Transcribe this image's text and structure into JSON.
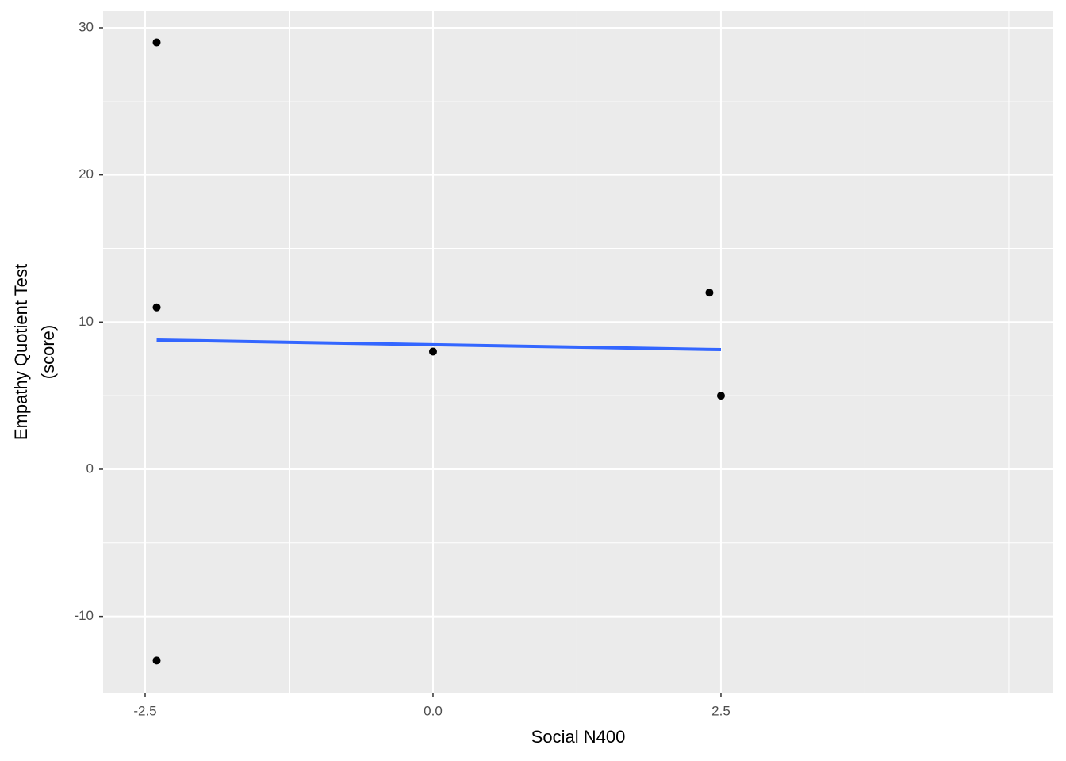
{
  "chart_data": {
    "type": "scatter",
    "x_label": "Social N400",
    "y_label": [
      "Empathy Quotient Test",
      "(score)"
    ],
    "x": [
      -2.4,
      -2.4,
      -2.4,
      0,
      2.4,
      2.5
    ],
    "values": [
      29,
      11,
      -13,
      8,
      12,
      5
    ],
    "color": "#000000",
    "fit_line": {
      "x": [
        -2.4,
        2.5
      ],
      "values": [
        8.78,
        8.13
      ],
      "color": "#3366FF"
    },
    "xlim": [
      -2.865,
      5.386
    ],
    "ylim": [
      -15.19,
      31.13
    ],
    "xticks": [
      {
        "value": -2.5,
        "label": "-2.5"
      },
      {
        "value": 0,
        "label": "0.0"
      },
      {
        "value": 2.5,
        "label": "2.5"
      }
    ],
    "x_minor_grid": [
      -1.25,
      1.25,
      3.75,
      5
    ],
    "yticks": [
      -10,
      0,
      10,
      20,
      30
    ],
    "y_minor_grid": [
      -5,
      5,
      15,
      25
    ],
    "grid": true
  }
}
